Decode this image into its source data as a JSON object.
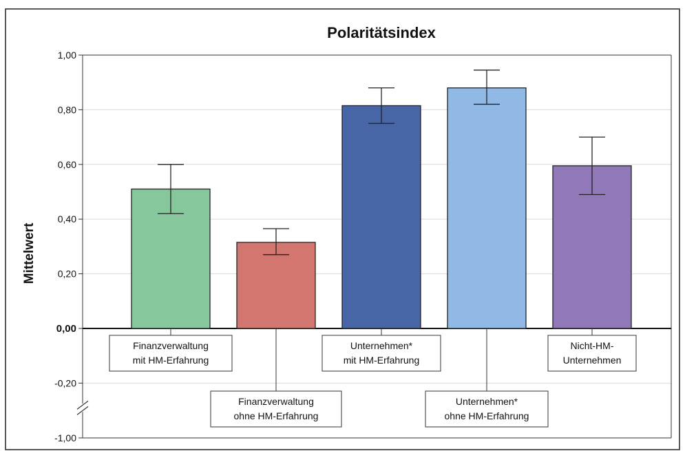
{
  "chart_data": {
    "type": "bar",
    "title": "Polaritätsindex",
    "ylabel": "Mittelwert",
    "xlabel": "",
    "ylim": [
      -1.0,
      1.0
    ],
    "axis_break": [
      -1.0,
      -0.2
    ],
    "grid": true,
    "yticks": [
      {
        "value": 1.0,
        "label": "1,00"
      },
      {
        "value": 0.8,
        "label": "0,80"
      },
      {
        "value": 0.6,
        "label": "0,60"
      },
      {
        "value": 0.4,
        "label": "0,40"
      },
      {
        "value": 0.2,
        "label": "0,20"
      },
      {
        "value": 0.0,
        "label": "0,00"
      },
      {
        "value": -0.2,
        "label": "-0,20"
      },
      {
        "value": -1.0,
        "label": "-1,00"
      }
    ],
    "categories": [
      {
        "lines": [
          "Finanzverwaltung",
          "mit HM-Erfahrung"
        ],
        "label_level": "upper"
      },
      {
        "lines": [
          "Finanzverwaltung",
          "ohne HM-Erfahrung"
        ],
        "label_level": "lower"
      },
      {
        "lines": [
          "Unternehmen*",
          "mit HM-Erfahrung"
        ],
        "label_level": "upper"
      },
      {
        "lines": [
          "Unternehmen*",
          "ohne HM-Erfahrung"
        ],
        "label_level": "lower"
      },
      {
        "lines": [
          "Nicht-HM-",
          "Unternehmen"
        ],
        "label_level": "upper"
      }
    ],
    "values": [
      0.51,
      0.315,
      0.815,
      0.88,
      0.595
    ],
    "errors": [
      {
        "low": 0.42,
        "high": 0.6
      },
      {
        "low": 0.27,
        "high": 0.365
      },
      {
        "low": 0.75,
        "high": 0.88
      },
      {
        "low": 0.82,
        "high": 0.945
      },
      {
        "low": 0.49,
        "high": 0.7
      }
    ],
    "colors": [
      "#86c79b",
      "#d37670",
      "#4866a5",
      "#90b9e6",
      "#9178b8"
    ]
  }
}
